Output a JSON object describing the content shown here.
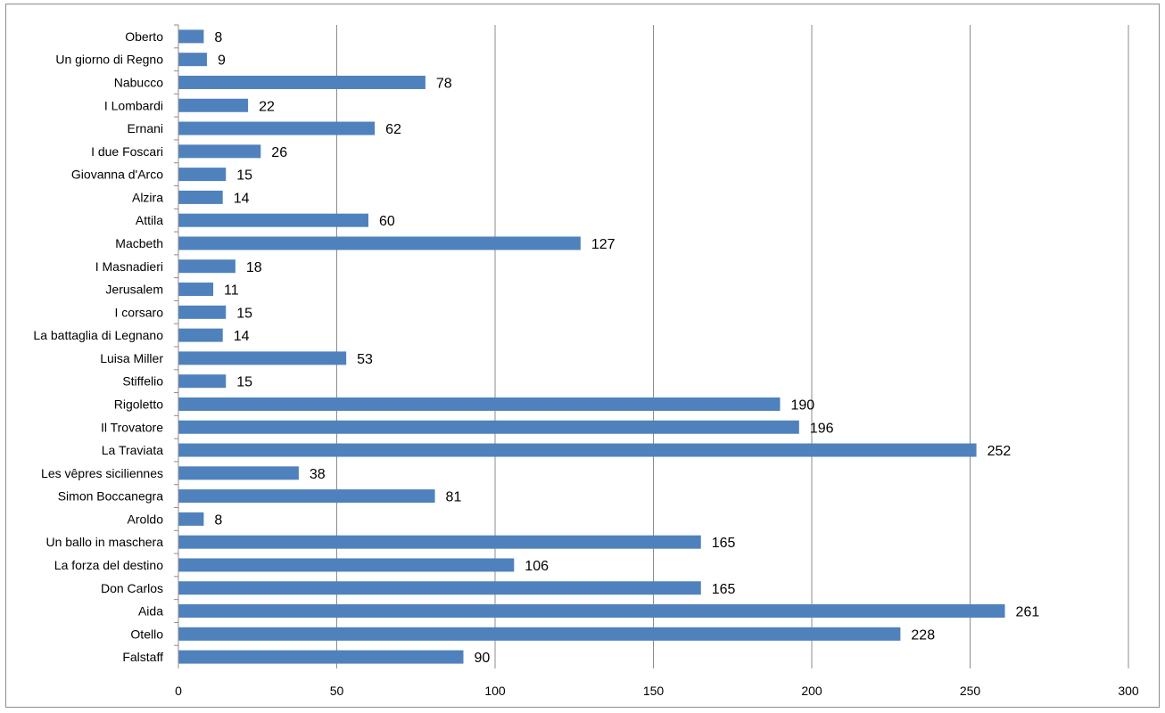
{
  "chart_data": {
    "type": "bar",
    "orientation": "horizontal",
    "categories": [
      "Oberto",
      "Un giorno di Regno",
      "Nabucco",
      "I Lombardi",
      "Ernani",
      "I due Foscari",
      "Giovanna d'Arco",
      "Alzira",
      "Attila",
      "Macbeth",
      "I Masnadieri",
      "Jerusalem",
      "I corsaro",
      "La battaglia di Legnano",
      "Luisa Miller",
      "Stiffelio",
      "Rigoletto",
      "Il Trovatore",
      "La Traviata",
      "Les vêpres siciliennes",
      "Simon Boccanegra",
      "Aroldo",
      "Un ballo in maschera",
      "La forza del destino",
      "Don Carlos",
      "Aida",
      "Otello",
      "Falstaff"
    ],
    "values": [
      8,
      9,
      78,
      22,
      62,
      26,
      15,
      14,
      60,
      127,
      18,
      11,
      15,
      14,
      53,
      15,
      190,
      196,
      252,
      38,
      81,
      8,
      165,
      106,
      165,
      261,
      228,
      90
    ],
    "title": "",
    "xlabel": "",
    "ylabel": "",
    "xlim": [
      0,
      300
    ],
    "x_ticks": [
      "0",
      "50",
      "100",
      "150",
      "200",
      "250",
      "300"
    ],
    "grid": "vertical",
    "legend": "none",
    "bar_color": "#4f81bd",
    "grid_color": "#8c8c8c"
  }
}
